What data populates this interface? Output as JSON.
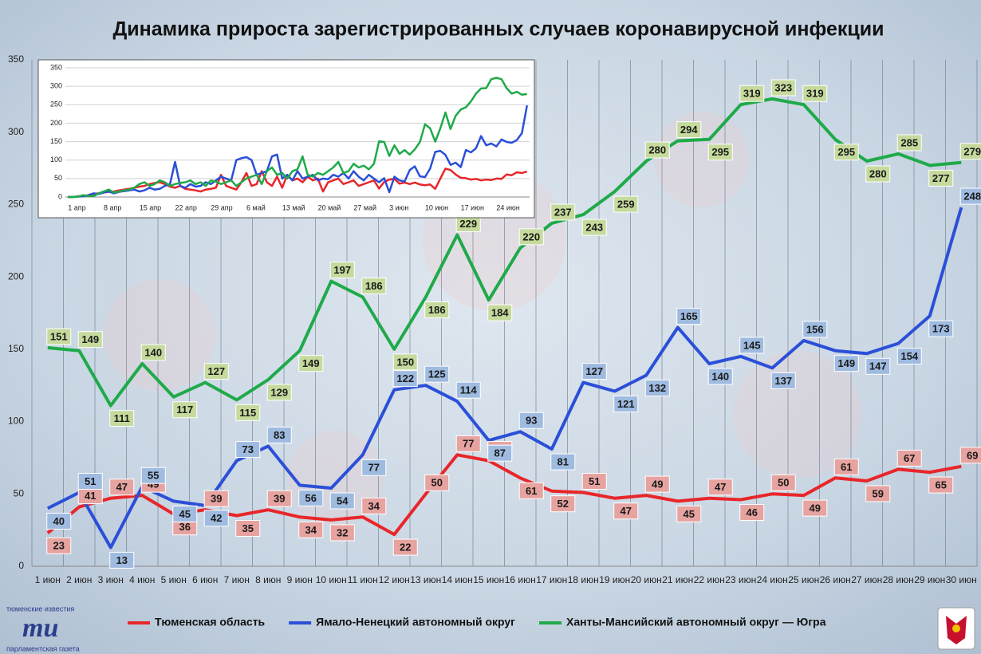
{
  "chart_data": [
    {
      "type": "line",
      "title": "Динамика прироста зарегистрированных случаев коронавирусной инфекции",
      "categories": [
        "1 июн",
        "2 июн",
        "3 июн",
        "4 июн",
        "5 июн",
        "6 июн",
        "7 июн",
        "8 июн",
        "9 июн",
        "10 июн",
        "11 июн",
        "12 июн",
        "13 июн",
        "14 июн",
        "15 июн",
        "16 июн",
        "17 июн",
        "18 июн",
        "19 июн",
        "20 июн",
        "21 июн",
        "22 июн",
        "23 июн",
        "24 июн",
        "25 июн",
        "26 июн",
        "27 июн",
        "28 июн",
        "29 июн",
        "30 июн"
      ],
      "series": [
        {
          "name": "Тюменская область",
          "color": "#e8262a",
          "label_color": "#e6a3a0",
          "values": [
            23,
            41,
            47,
            49,
            36,
            39,
            35,
            39,
            34,
            32,
            34,
            22,
            50,
            77,
            73,
            61,
            52,
            51,
            47,
            49,
            45,
            47,
            46,
            50,
            49,
            61,
            59,
            67,
            65,
            69
          ]
        },
        {
          "name": "Ямало-Ненецкий автономный округ",
          "color": "#2b4fd8",
          "label_color": "#9fbbe0",
          "values": [
            40,
            51,
            13,
            55,
            45,
            42,
            73,
            83,
            56,
            54,
            77,
            122,
            125,
            114,
            87,
            93,
            81,
            127,
            121,
            132,
            165,
            140,
            145,
            137,
            156,
            149,
            147,
            154,
            173,
            248
          ]
        },
        {
          "name": "Ханты-Мансийский автономный округ — Югра",
          "color": "#1faa4a",
          "label_color": "#c6da9d",
          "values": [
            151,
            149,
            111,
            140,
            117,
            127,
            115,
            129,
            149,
            197,
            186,
            150,
            186,
            229,
            184,
            220,
            237,
            243,
            259,
            280,
            294,
            295,
            319,
            323,
            319,
            295,
            280,
            285,
            277,
            279
          ]
        }
      ],
      "ylim": [
        0,
        350
      ],
      "yticks": [
        0,
        50,
        100,
        150,
        200,
        250,
        300,
        350
      ]
    },
    {
      "type": "line",
      "categories": [
        "1 апр",
        null,
        null,
        null,
        null,
        null,
        null,
        "8 апр",
        null,
        null,
        null,
        null,
        null,
        null,
        "15 апр",
        null,
        null,
        null,
        null,
        null,
        null,
        "22 апр",
        null,
        null,
        null,
        null,
        null,
        null,
        "29 апр",
        null,
        null,
        null,
        null,
        null,
        null,
        "6 май",
        null,
        null,
        null,
        null,
        null,
        null,
        "13 май",
        null,
        null,
        null,
        null,
        null,
        null,
        "20 май",
        null,
        null,
        null,
        null,
        null,
        null,
        "27 май",
        null,
        null,
        null,
        null,
        null,
        null,
        "3 июн",
        null,
        null,
        null,
        null,
        null,
        null,
        "10 июн",
        null,
        null,
        null,
        null,
        null,
        null,
        "17 июн",
        null,
        null,
        null,
        null,
        null,
        null,
        "24 июн",
        null,
        null,
        null,
        null,
        null,
        null
      ],
      "series": [
        {
          "color": "#e8262a",
          "values": [
            0,
            0,
            2,
            3,
            5,
            8,
            10,
            12,
            14,
            15,
            18,
            20,
            22,
            25,
            28,
            30,
            35,
            38,
            40,
            35,
            28,
            25,
            30,
            22,
            20,
            18,
            15,
            20,
            22,
            25,
            60,
            30,
            25,
            20,
            40,
            65,
            30,
            35,
            70,
            40,
            30,
            55,
            25,
            60,
            45,
            50,
            40,
            55,
            45,
            50,
            15,
            40,
            45,
            50,
            35,
            40,
            45,
            30,
            35,
            40,
            45,
            23,
            41,
            47,
            49,
            36,
            39,
            35,
            39,
            34,
            32,
            34,
            22,
            50,
            77,
            73,
            61,
            52,
            51,
            47,
            49,
            45,
            47,
            46,
            50,
            49,
            61,
            59,
            67,
            65,
            69
          ]
        },
        {
          "color": "#2b4fd8",
          "values": [
            0,
            0,
            1,
            2,
            5,
            10,
            8,
            12,
            15,
            10,
            14,
            16,
            18,
            20,
            15,
            18,
            25,
            20,
            22,
            30,
            35,
            95,
            30,
            25,
            35,
            28,
            30,
            40,
            35,
            45,
            55,
            50,
            45,
            100,
            105,
            108,
            100,
            60,
            65,
            70,
            110,
            115,
            50,
            60,
            45,
            70,
            50,
            55,
            60,
            45,
            50,
            48,
            60,
            55,
            65,
            50,
            70,
            55,
            45,
            60,
            50,
            40,
            51,
            13,
            55,
            45,
            42,
            73,
            83,
            56,
            54,
            77,
            122,
            125,
            114,
            87,
            93,
            81,
            127,
            121,
            132,
            165,
            140,
            145,
            137,
            156,
            149,
            147,
            154,
            173,
            248
          ]
        },
        {
          "color": "#1faa4a",
          "values": [
            0,
            0,
            1,
            5,
            3,
            2,
            10,
            15,
            20,
            12,
            15,
            18,
            20,
            25,
            35,
            40,
            30,
            35,
            45,
            40,
            30,
            35,
            38,
            40,
            45,
            35,
            40,
            30,
            45,
            42,
            35,
            40,
            45,
            30,
            40,
            50,
            55,
            60,
            35,
            70,
            80,
            60,
            65,
            50,
            70,
            75,
            110,
            60,
            55,
            65,
            60,
            70,
            80,
            95,
            65,
            70,
            90,
            80,
            85,
            75,
            90,
            151,
            149,
            111,
            140,
            117,
            127,
            115,
            129,
            149,
            197,
            186,
            150,
            186,
            229,
            184,
            220,
            237,
            243,
            259,
            280,
            294,
            295,
            319,
            323,
            319,
            295,
            280,
            285,
            277,
            279
          ]
        }
      ],
      "ylim": [
        0,
        350
      ],
      "yticks": [
        0,
        50,
        100,
        150,
        200,
        250,
        300,
        350
      ]
    }
  ],
  "logo": {
    "top": "тюменские известия",
    "mark": "ти",
    "bottom": "парламентская газета"
  }
}
